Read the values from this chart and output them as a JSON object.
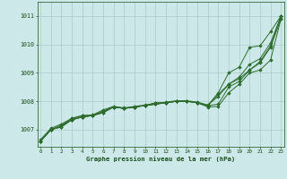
{
  "background_color": "#cce8e8",
  "grid_color": "#aacccc",
  "line_color": "#2d6b2d",
  "marker_color": "#2d6b2d",
  "xlabel": "Graphe pression niveau de la mer (hPa)",
  "xlabel_color": "#1a4d1a",
  "tick_color": "#1a4d1a",
  "ylim": [
    1006.4,
    1011.5
  ],
  "xlim": [
    -0.3,
    23.3
  ],
  "yticks": [
    1007,
    1008,
    1009,
    1010,
    1011
  ],
  "xticks": [
    0,
    1,
    2,
    3,
    4,
    5,
    6,
    7,
    8,
    9,
    10,
    11,
    12,
    13,
    14,
    15,
    16,
    17,
    18,
    19,
    20,
    21,
    22,
    23
  ],
  "series": [
    [
      1006.6,
      1007.0,
      1007.1,
      1007.35,
      1007.45,
      1007.5,
      1007.6,
      1007.8,
      1007.75,
      1007.8,
      1007.85,
      1007.9,
      1007.95,
      1008.0,
      1008.0,
      1007.95,
      1007.8,
      1007.82,
      1008.3,
      1008.6,
      1009.0,
      1009.1,
      1009.45,
      1010.9
    ],
    [
      1006.6,
      1007.0,
      1007.1,
      1007.35,
      1007.45,
      1007.5,
      1007.6,
      1007.8,
      1007.75,
      1007.8,
      1007.85,
      1007.9,
      1007.95,
      1008.0,
      1008.0,
      1007.95,
      1007.85,
      1007.9,
      1008.5,
      1008.7,
      1009.1,
      1009.35,
      1009.9,
      1010.9
    ],
    [
      1006.6,
      1007.0,
      1007.15,
      1007.35,
      1007.45,
      1007.5,
      1007.65,
      1007.8,
      1007.75,
      1007.8,
      1007.85,
      1007.9,
      1007.95,
      1008.0,
      1008.0,
      1007.95,
      1007.85,
      1008.25,
      1008.6,
      1008.8,
      1009.1,
      1009.4,
      1009.95,
      1011.0
    ],
    [
      1006.6,
      1007.0,
      1007.15,
      1007.4,
      1007.5,
      1007.5,
      1007.65,
      1007.8,
      1007.75,
      1007.8,
      1007.85,
      1007.95,
      1007.95,
      1008.0,
      1008.0,
      1007.95,
      1007.85,
      1008.3,
      1009.0,
      1009.2,
      1009.9,
      1009.95,
      1010.45,
      1011.0
    ],
    [
      1006.65,
      1007.05,
      1007.2,
      1007.4,
      1007.5,
      1007.52,
      1007.7,
      1007.82,
      1007.77,
      1007.82,
      1007.87,
      1007.93,
      1007.97,
      1008.02,
      1008.02,
      1007.97,
      1007.87,
      1008.17,
      1008.6,
      1008.85,
      1009.3,
      1009.5,
      1010.05,
      1011.0
    ]
  ]
}
